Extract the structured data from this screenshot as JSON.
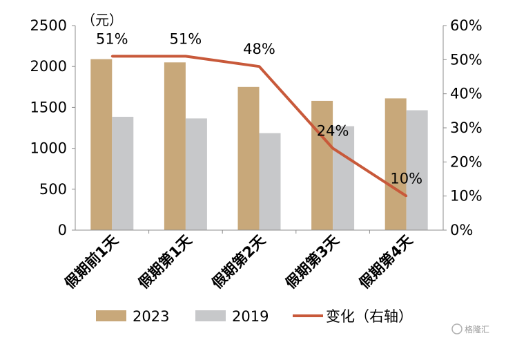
{
  "chart_data": {
    "type": "bar",
    "unit_label": "（元）",
    "categories": [
      "假期前1天",
      "假期第1天",
      "假期第2天",
      "假期第3天",
      "假期第4天"
    ],
    "series": [
      {
        "name": "2023",
        "type": "bar",
        "axis": "left",
        "color": "#c8a87a",
        "values": [
          2090,
          2050,
          1750,
          1580,
          1610
        ]
      },
      {
        "name": "2019",
        "type": "bar",
        "axis": "left",
        "color": "#c7c8ca",
        "values": [
          1385,
          1365,
          1185,
          1270,
          1465
        ]
      },
      {
        "name": "变化（右轴）",
        "type": "line",
        "axis": "right",
        "color": "#c8593a",
        "values": [
          0.51,
          0.51,
          0.48,
          0.24,
          0.1
        ],
        "labels": [
          "51%",
          "51%",
          "48%",
          "24%",
          "10%"
        ]
      }
    ],
    "y_left": {
      "min": 0,
      "max": 2500,
      "ticks": [
        "0",
        "500",
        "1000",
        "1500",
        "2000",
        "2500"
      ]
    },
    "y_right": {
      "min": 0,
      "max": 0.6,
      "ticks": [
        "0%",
        "10%",
        "20%",
        "30%",
        "40%",
        "50%",
        "60%"
      ]
    },
    "grid": false,
    "legend_position": "bottom"
  },
  "watermark": {
    "text": "格隆汇"
  }
}
